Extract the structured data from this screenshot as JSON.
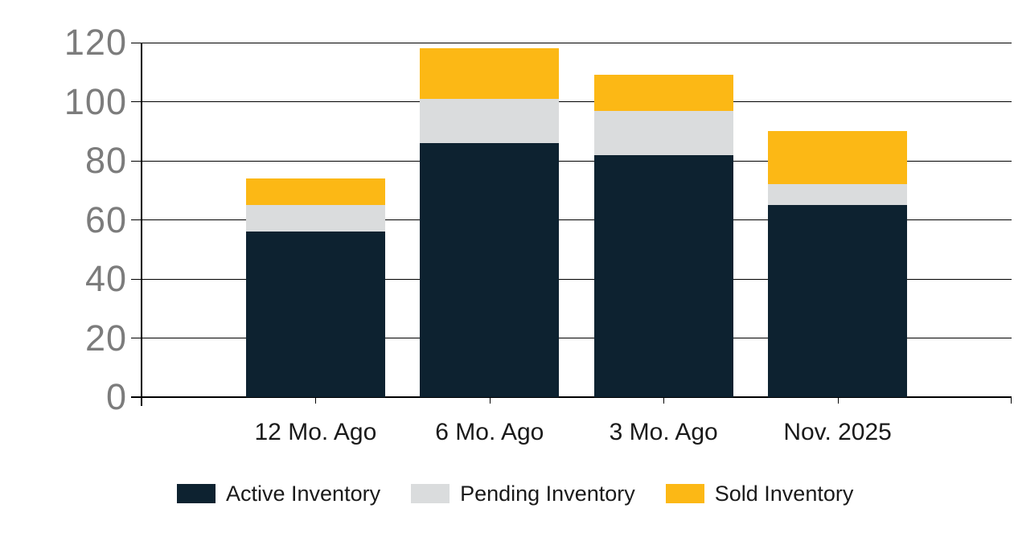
{
  "chart_data": {
    "type": "bar",
    "stacked": true,
    "title": "",
    "xlabel": "",
    "ylabel": "",
    "categories": [
      "12 Mo. Ago",
      "6 Mo. Ago",
      "3 Mo. Ago",
      "Nov. 2025"
    ],
    "series": [
      {
        "name": "Active Inventory",
        "color": "#0D2230",
        "values": [
          56,
          86,
          82,
          65
        ]
      },
      {
        "name": "Pending Inventory",
        "color": "#DADCDD",
        "values": [
          9,
          15,
          15,
          7
        ]
      },
      {
        "name": "Sold Inventory",
        "color": "#FCB815",
        "values": [
          9,
          17,
          12,
          18
        ]
      }
    ],
    "stack_totals": [
      74,
      118,
      109,
      90
    ],
    "ylim": [
      0,
      120
    ],
    "yticks": [
      0,
      20,
      40,
      60,
      80,
      100,
      120
    ],
    "ytick_labels": [
      "0",
      "20",
      "40",
      "60",
      "80",
      "100",
      "120"
    ],
    "grid": true,
    "legend_position": "bottom"
  },
  "colors": {
    "background": "#FFFFFF",
    "gridline": "#000000",
    "axis": "#000000",
    "y_axis_label_text": "#7C7C7C",
    "x_axis_label_text": "#1A1A1A",
    "legend_text": "#1A1A1A",
    "active_inventory": "#0D2230",
    "pending_inventory": "#DADCDD",
    "sold_inventory": "#FCB815"
  }
}
